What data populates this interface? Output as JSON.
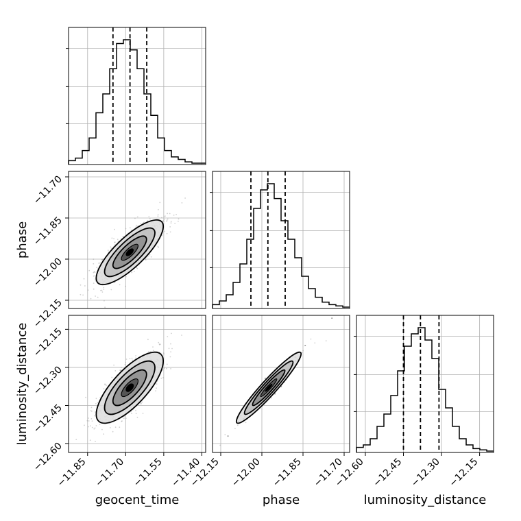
{
  "chart_data": {
    "type": "corner",
    "parameters": [
      "geocent_time",
      "phase",
      "luminosity_distance"
    ],
    "grid": true,
    "ticks": {
      "geocent_time": [
        -11.85,
        -11.7,
        -11.55,
        -11.4
      ],
      "phase": [
        -12.15,
        -12.0,
        -11.85,
        -11.7
      ],
      "luminosity_distance": [
        -12.6,
        -12.45,
        -12.3,
        -12.15
      ]
    },
    "tick_labels": {
      "geocent_time": [
        "−11.85",
        "−11.70",
        "−11.55",
        "−11.40"
      ],
      "phase": [
        "−12.15",
        "−12.00",
        "−11.85",
        "−11.70"
      ],
      "luminosity_distance": [
        "−12.60",
        "−12.45",
        "−12.30",
        "−12.15"
      ]
    },
    "ranges": {
      "geocent_time": [
        -11.925,
        -11.385
      ],
      "phase": [
        -12.18,
        -11.68
      ],
      "luminosity_distance": [
        -12.635,
        -12.095
      ]
    },
    "histograms": [
      {
        "param": "geocent_time",
        "bin_edges": [
          -11.925,
          -11.898,
          -11.871,
          -11.844,
          -11.817,
          -11.79,
          -11.763,
          -11.736,
          -11.709,
          -11.682,
          -11.655,
          -11.628,
          -11.601,
          -11.574,
          -11.547,
          -11.52,
          -11.493,
          -11.466,
          -11.439,
          -11.412,
          -11.385
        ],
        "counts": [
          2,
          4,
          10,
          20,
          40,
          55,
          75,
          95,
          98,
          90,
          75,
          55,
          38,
          20,
          10,
          5,
          3,
          1,
          0,
          0
        ],
        "quantiles": [
          -11.75,
          -11.683,
          -11.617
        ]
      },
      {
        "param": "phase",
        "bin_edges": [
          -12.18,
          -12.155,
          -12.13,
          -12.105,
          -12.08,
          -12.055,
          -12.03,
          -12.005,
          -11.98,
          -11.955,
          -11.93,
          -11.905,
          -11.88,
          -11.855,
          -11.83,
          -11.805,
          -11.78,
          -11.755,
          -11.73,
          -11.705,
          -11.68
        ],
        "counts": [
          2,
          5,
          10,
          20,
          35,
          55,
          80,
          95,
          100,
          88,
          70,
          55,
          40,
          25,
          15,
          8,
          4,
          2,
          1,
          0
        ],
        "quantiles": [
          -12.04,
          -11.978,
          -11.915
        ]
      },
      {
        "param": "luminosity_distance",
        "bin_edges": [
          -12.635,
          -12.608,
          -12.581,
          -12.554,
          -12.527,
          -12.5,
          -12.473,
          -12.446,
          -12.419,
          -12.392,
          -12.365,
          -12.338,
          -12.311,
          -12.284,
          -12.257,
          -12.23,
          -12.203,
          -12.176,
          -12.149,
          -12.122,
          -12.095
        ],
        "counts": [
          3,
          5,
          10,
          20,
          30,
          45,
          65,
          85,
          95,
          100,
          90,
          75,
          50,
          35,
          20,
          10,
          5,
          2,
          1,
          0
        ],
        "quantiles": [
          -12.45,
          -12.383,
          -12.31
        ]
      }
    ],
    "contours": [
      {
        "x": "geocent_time",
        "y": "phase",
        "center": [
          -11.684,
          -11.975
        ],
        "sd": [
          0.066,
          0.059
        ],
        "corr": 0.8
      },
      {
        "x": "geocent_time",
        "y": "luminosity_distance",
        "center": [
          -11.684,
          -12.38
        ],
        "sd": [
          0.066,
          0.07
        ],
        "corr": 0.75
      },
      {
        "x": "phase",
        "y": "luminosity_distance",
        "center": [
          -11.975,
          -12.38
        ],
        "sd": [
          0.059,
          0.07
        ],
        "corr": 0.95
      }
    ],
    "contour_levels_sigma": [
      0.5,
      1.0,
      1.5,
      2.0
    ],
    "colors": {
      "line": "#000000",
      "grid": "#b0b0b0",
      "points": "#999999"
    }
  }
}
